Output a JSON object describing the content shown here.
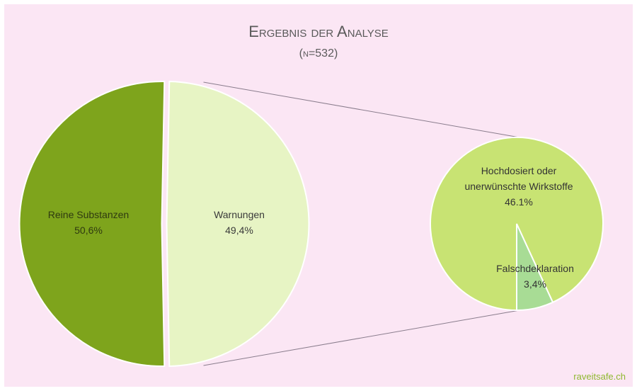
{
  "chart_data": {
    "type": "pie",
    "title": "Ergebnis der Analyse",
    "subtitle": "(n=532)",
    "background_color": "#fbe6f4",
    "main_pie": {
      "slices": [
        {
          "label": "Reine Substanzen",
          "value_label": "50,6%",
          "value": 50.6,
          "color": "#7ea41c"
        },
        {
          "label": "Warnungen",
          "value_label": "49,4%",
          "value": 49.4,
          "color": "#e7f4c4"
        }
      ]
    },
    "sub_pie": {
      "of_slice": "Warnungen",
      "slices": [
        {
          "label": "Hochdosiert oder unerwünschte Wirkstoffe",
          "label_lines": [
            "Hochdosiert oder",
            "unerwünschte Wirkstoffe"
          ],
          "value_label": "46.1%",
          "value": 46.1,
          "color": "#c8e373"
        },
        {
          "label": "Falschdeklaration",
          "label_lines": [
            "Falschdeklaration"
          ],
          "value_label": "3,4%",
          "value": 3.4,
          "color": "#a8dc95"
        }
      ]
    },
    "connector_color": "#8a7d8d"
  },
  "watermark": "raveitsafe.ch",
  "watermark_color": "#8fb830"
}
